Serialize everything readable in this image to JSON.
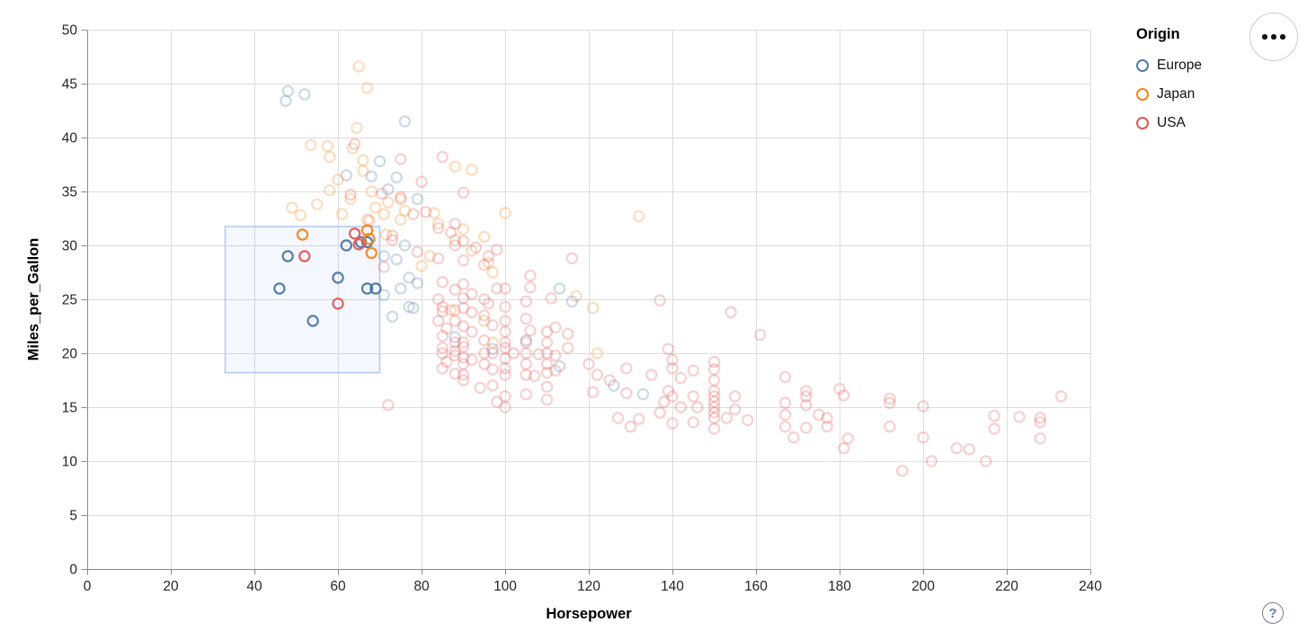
{
  "controls": {
    "help_label": "?"
  },
  "chart_data": {
    "type": "scatter",
    "xlabel": "Horsepower",
    "ylabel": "Miles_per_Gallon",
    "xlim": [
      0,
      240
    ],
    "ylim": [
      0,
      50
    ],
    "x_ticks": [
      0,
      20,
      40,
      60,
      80,
      100,
      120,
      140,
      160,
      180,
      200,
      220,
      240
    ],
    "y_ticks": [
      0,
      5,
      10,
      15,
      20,
      25,
      30,
      35,
      40,
      45,
      50
    ],
    "grid": true,
    "legend": {
      "title": "Origin",
      "position": "top-right",
      "entries": [
        {
          "label": "Europe",
          "color": "#4c78a8"
        },
        {
          "label": "Japan",
          "color": "#f58518"
        },
        {
          "label": "USA",
          "color": "#e45756"
        }
      ]
    },
    "brush": {
      "x": [
        33,
        70
      ],
      "y": [
        18.2,
        31.75
      ]
    },
    "series": [
      {
        "name": "Europe",
        "color": "#4c78a8",
        "selected": [
          [
            46,
            26
          ],
          [
            48,
            29
          ],
          [
            54,
            23
          ],
          [
            60,
            27
          ],
          [
            62,
            30
          ],
          [
            65.5,
            30.3
          ],
          [
            67,
            30.3
          ],
          [
            67,
            26
          ],
          [
            69,
            26
          ]
        ],
        "unselected": [
          [
            48,
            44.3
          ],
          [
            52,
            44
          ],
          [
            47.5,
            43.4
          ],
          [
            76,
            41.5
          ],
          [
            70,
            37.8
          ],
          [
            62,
            36.5
          ],
          [
            68,
            36.4
          ],
          [
            74,
            36.3
          ],
          [
            72,
            35.2
          ],
          [
            79,
            34.3
          ],
          [
            71,
            29
          ],
          [
            76,
            30
          ],
          [
            74,
            28.7
          ],
          [
            77,
            27
          ],
          [
            79,
            26.5
          ],
          [
            75,
            26
          ],
          [
            77,
            24.3
          ],
          [
            73,
            23.4
          ],
          [
            71,
            25.4
          ],
          [
            78,
            24.2
          ],
          [
            88,
            21.5
          ],
          [
            97,
            20.4
          ],
          [
            105,
            21.2
          ],
          [
            113,
            26
          ],
          [
            116,
            24.8
          ],
          [
            113,
            18.8
          ],
          [
            126,
            17
          ],
          [
            133,
            16.2
          ]
        ]
      },
      {
        "name": "Japan",
        "color": "#f58518",
        "selected": [
          [
            51.5,
            31
          ],
          [
            67,
            31.4
          ],
          [
            67.5,
            30.6
          ],
          [
            68,
            29.3
          ]
        ],
        "unselected": [
          [
            65,
            46.6
          ],
          [
            67,
            44.6
          ],
          [
            64.5,
            40.9
          ],
          [
            57.5,
            39.2
          ],
          [
            63.5,
            39
          ],
          [
            53.5,
            39.3
          ],
          [
            58,
            38.2
          ],
          [
            66,
            37.9
          ],
          [
            66,
            36.9
          ],
          [
            60,
            36.1
          ],
          [
            58,
            35.1
          ],
          [
            68,
            35
          ],
          [
            63,
            34.3
          ],
          [
            72,
            34
          ],
          [
            75,
            34.5
          ],
          [
            69,
            33.5
          ],
          [
            71,
            32.9
          ],
          [
            76,
            33.2
          ],
          [
            83,
            33
          ],
          [
            61,
            32.9
          ],
          [
            55,
            33.8
          ],
          [
            49,
            33.5
          ],
          [
            51,
            32.8
          ],
          [
            67,
            32.4
          ],
          [
            88,
            37.3
          ],
          [
            92,
            37
          ],
          [
            100,
            33
          ],
          [
            132,
            32.7
          ],
          [
            75,
            32.4
          ],
          [
            84,
            32
          ],
          [
            88,
            30.5
          ],
          [
            95,
            30.8
          ],
          [
            90,
            31.5
          ],
          [
            71.5,
            31
          ],
          [
            82,
            29
          ],
          [
            80,
            28.1
          ],
          [
            92,
            29.5
          ],
          [
            96,
            28.4
          ],
          [
            97,
            27.5
          ],
          [
            87,
            24
          ],
          [
            95,
            23
          ],
          [
            97,
            21
          ],
          [
            117,
            25.3
          ],
          [
            121,
            24.2
          ],
          [
            122,
            20
          ]
        ]
      },
      {
        "name": "USA",
        "color": "#e45756",
        "selected": [
          [
            52,
            29
          ],
          [
            60,
            24.6
          ],
          [
            64,
            31.1
          ],
          [
            65,
            30.1
          ]
        ],
        "unselected": [
          [
            64,
            39.4
          ],
          [
            75,
            38
          ],
          [
            85,
            38.2
          ],
          [
            80,
            35.9
          ],
          [
            70.5,
            34.8
          ],
          [
            75,
            34.3
          ],
          [
            63,
            34.7
          ],
          [
            81,
            33.1
          ],
          [
            90,
            34.9
          ],
          [
            78,
            32.9
          ],
          [
            88,
            32
          ],
          [
            67.5,
            32.3
          ],
          [
            73,
            30.9
          ],
          [
            87,
            31.2
          ],
          [
            90,
            30.4
          ],
          [
            73,
            30.5
          ],
          [
            84,
            31.6
          ],
          [
            79,
            29.4
          ],
          [
            93,
            29.8
          ],
          [
            96,
            29
          ],
          [
            71,
            28
          ],
          [
            84,
            28.8
          ],
          [
            88,
            30
          ],
          [
            90,
            28.6
          ],
          [
            95,
            28.2
          ],
          [
            98,
            29.6
          ],
          [
            116,
            28.8
          ],
          [
            106,
            27.2
          ],
          [
            106,
            26.1
          ],
          [
            85,
            26.6
          ],
          [
            88,
            25.9
          ],
          [
            90,
            26.4
          ],
          [
            92,
            25.5
          ],
          [
            95,
            25
          ],
          [
            98,
            26
          ],
          [
            100,
            26
          ],
          [
            90,
            25.1
          ],
          [
            111,
            25.1
          ],
          [
            84,
            25
          ],
          [
            96,
            24.6
          ],
          [
            100,
            24.3
          ],
          [
            105,
            24.8
          ],
          [
            137,
            24.9
          ],
          [
            154,
            23.8
          ],
          [
            85,
            24.3
          ],
          [
            88,
            24
          ],
          [
            85,
            23.9
          ],
          [
            90,
            24.2
          ],
          [
            84,
            23
          ],
          [
            88,
            23
          ],
          [
            86,
            22.3
          ],
          [
            90,
            22.5
          ],
          [
            92,
            22
          ],
          [
            85,
            21.6
          ],
          [
            95,
            23.5
          ],
          [
            97,
            22.6
          ],
          [
            100,
            23
          ],
          [
            100,
            22
          ],
          [
            105,
            23.2
          ],
          [
            106,
            22.1
          ],
          [
            110,
            22
          ],
          [
            112,
            22.4
          ],
          [
            115,
            21.8
          ],
          [
            92,
            23.8
          ],
          [
            161,
            21.7
          ],
          [
            88,
            21
          ],
          [
            90,
            21
          ],
          [
            85,
            20.5
          ],
          [
            88,
            20.2
          ],
          [
            90,
            20.6
          ],
          [
            85,
            20
          ],
          [
            95,
            20
          ],
          [
            100,
            21
          ],
          [
            100,
            20.5
          ],
          [
            102,
            20
          ],
          [
            105,
            21
          ],
          [
            105,
            20
          ],
          [
            108,
            19.9
          ],
          [
            110,
            21
          ],
          [
            110,
            20
          ],
          [
            112,
            19.8
          ],
          [
            115,
            20.5
          ],
          [
            97,
            20
          ],
          [
            95,
            21.2
          ],
          [
            90,
            19.6
          ],
          [
            88,
            19.8
          ],
          [
            86,
            19.2
          ],
          [
            90,
            19
          ],
          [
            92,
            19.4
          ],
          [
            85,
            18.6
          ],
          [
            88,
            18.1
          ],
          [
            90,
            18
          ],
          [
            95,
            19
          ],
          [
            97,
            18.5
          ],
          [
            100,
            19.5
          ],
          [
            100,
            18.6
          ],
          [
            105,
            19
          ],
          [
            110,
            19
          ],
          [
            105,
            18
          ],
          [
            110,
            18.2
          ],
          [
            100,
            18
          ],
          [
            107,
            17.9
          ],
          [
            112,
            18.4
          ],
          [
            97,
            17
          ],
          [
            100,
            16
          ],
          [
            98,
            15.5
          ],
          [
            105,
            16.2
          ],
          [
            110,
            16.9
          ],
          [
            110,
            15.7
          ],
          [
            94,
            16.8
          ],
          [
            90,
            17.5
          ],
          [
            100,
            15
          ],
          [
            72,
            15.2
          ],
          [
            120,
            19
          ],
          [
            122,
            18
          ],
          [
            125,
            17.5
          ],
          [
            129,
            16.3
          ],
          [
            127,
            14
          ],
          [
            130,
            13.2
          ],
          [
            132,
            13.9
          ],
          [
            121,
            16.4
          ],
          [
            129,
            18.6
          ],
          [
            140,
            18.6
          ],
          [
            142,
            17.7
          ],
          [
            139,
            16.5
          ],
          [
            140,
            16
          ],
          [
            138,
            15.5
          ],
          [
            142,
            15
          ],
          [
            137,
            14.5
          ],
          [
            140,
            13.5
          ],
          [
            139,
            20.4
          ],
          [
            140,
            19.4
          ],
          [
            135,
            18
          ],
          [
            145,
            18.4
          ],
          [
            145,
            16
          ],
          [
            146,
            15
          ],
          [
            145,
            13.6
          ],
          [
            150,
            19.2
          ],
          [
            150,
            18.5
          ],
          [
            150,
            17.5
          ],
          [
            150,
            16.5
          ],
          [
            150,
            16
          ],
          [
            150,
            15.5
          ],
          [
            150,
            15
          ],
          [
            150,
            14.5
          ],
          [
            150,
            14
          ],
          [
            150,
            13
          ],
          [
            153,
            14
          ],
          [
            155,
            16
          ],
          [
            155,
            14.8
          ],
          [
            158,
            13.8
          ],
          [
            167,
            17.8
          ],
          [
            167,
            15.4
          ],
          [
            167,
            14.3
          ],
          [
            167,
            13.2
          ],
          [
            169,
            12.2
          ],
          [
            172,
            16.5
          ],
          [
            172,
            16
          ],
          [
            172,
            15.2
          ],
          [
            172,
            13.1
          ],
          [
            175,
            14.3
          ],
          [
            177,
            14
          ],
          [
            177,
            13.2
          ],
          [
            180,
            16.7
          ],
          [
            181,
            16.1
          ],
          [
            182,
            12.1
          ],
          [
            181,
            11.2
          ],
          [
            192,
            15.8
          ],
          [
            192,
            15.4
          ],
          [
            192,
            13.2
          ],
          [
            195,
            9.1
          ],
          [
            200,
            15.1
          ],
          [
            200,
            12.2
          ],
          [
            202,
            10
          ],
          [
            208,
            11.2
          ],
          [
            211,
            11.1
          ],
          [
            215,
            10
          ],
          [
            217,
            14.2
          ],
          [
            217,
            13
          ],
          [
            223,
            14.1
          ],
          [
            228,
            14
          ],
          [
            228,
            13.6
          ],
          [
            228,
            12.1
          ],
          [
            233,
            16
          ]
        ]
      }
    ]
  }
}
